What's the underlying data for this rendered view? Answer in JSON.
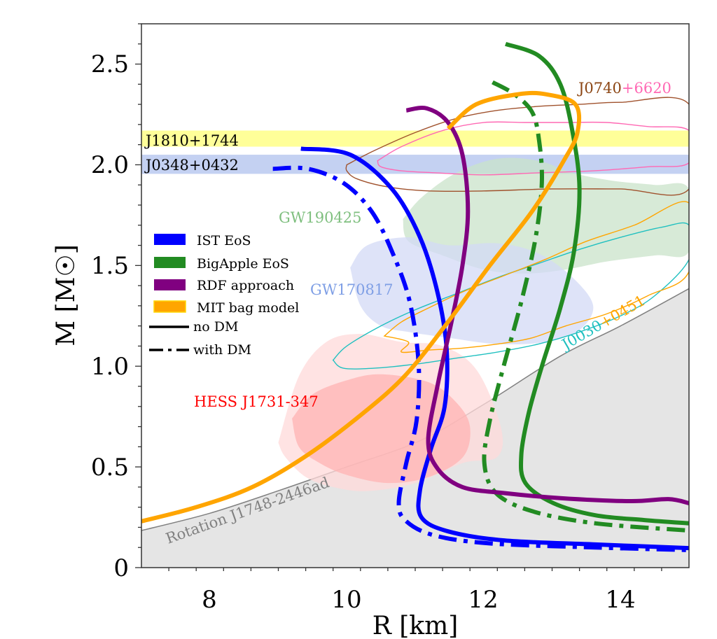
{
  "chart_data": {
    "type": "line",
    "title": "",
    "xlabel": "R [km]",
    "ylabel": "M [M☉]",
    "xlim": [
      7,
      15
    ],
    "ylim": [
      0,
      2.7
    ],
    "xticks": [
      8,
      10,
      12,
      14
    ],
    "yticks": [
      0,
      0.5,
      1.0,
      1.5,
      2.0,
      2.5
    ],
    "ytick_labels": [
      "0",
      "0.5",
      "1.0",
      "1.5",
      "2.0",
      "2.5"
    ],
    "xtick_labels": [
      "8",
      "10",
      "12",
      "14"
    ],
    "grid": false,
    "legend": {
      "placement": "center-left",
      "entries": [
        {
          "label": "IST EoS",
          "kind": "patch",
          "color": "#0000ff"
        },
        {
          "label": "BigApple EoS",
          "kind": "patch",
          "color": "#228b22"
        },
        {
          "label": "RDF approach",
          "kind": "patch",
          "color": "#800080"
        },
        {
          "label": "MIT bag model",
          "kind": "patch",
          "color": "#ffa500"
        },
        {
          "label": "no DM",
          "kind": "line",
          "style": "solid",
          "color": "#000000"
        },
        {
          "label": "with DM",
          "kind": "line",
          "style": "dashdot",
          "color": "#000000"
        }
      ]
    },
    "series": [
      {
        "name": "IST EoS no DM",
        "color": "#0000ff",
        "style": "solid",
        "x": [
          9.33,
          10.05,
          10.66,
          11.07,
          11.33,
          11.46,
          11.43,
          11.23,
          11.07,
          11.09,
          11.48,
          12.3,
          13.63,
          15.0
        ],
        "y": [
          2.08,
          2.05,
          1.88,
          1.64,
          1.36,
          1.08,
          0.8,
          0.59,
          0.385,
          0.25,
          0.18,
          0.135,
          0.115,
          0.097
        ]
      },
      {
        "name": "IST EoS with DM",
        "color": "#0000ff",
        "style": "dashdot",
        "x": [
          8.92,
          9.43,
          9.95,
          10.36,
          10.66,
          10.92,
          11.05,
          11.02,
          10.87,
          10.76,
          10.87,
          11.28,
          12.1,
          13.63,
          15.0
        ],
        "y": [
          1.98,
          1.98,
          1.91,
          1.77,
          1.57,
          1.32,
          1.01,
          0.73,
          0.52,
          0.32,
          0.23,
          0.16,
          0.12,
          0.1,
          0.087
        ]
      },
      {
        "name": "BigApple EoS no DM",
        "color": "#228b22",
        "style": "solid",
        "x": [
          12.32,
          12.81,
          13.12,
          13.3,
          13.4,
          13.32,
          13.12,
          12.86,
          12.66,
          12.55,
          12.61,
          13.02,
          13.63,
          14.35,
          15.0
        ],
        "y": [
          2.6,
          2.54,
          2.4,
          2.16,
          1.88,
          1.57,
          1.29,
          1.01,
          0.77,
          0.56,
          0.42,
          0.32,
          0.26,
          0.236,
          0.22
        ]
      },
      {
        "name": "BigApple EoS with DM",
        "color": "#228b22",
        "style": "dashdot",
        "x": [
          12.13,
          12.45,
          12.71,
          12.81,
          12.85,
          12.76,
          12.55,
          12.3,
          12.09,
          12.01,
          12.18,
          12.71,
          13.63,
          15.0
        ],
        "y": [
          2.41,
          2.35,
          2.26,
          2.12,
          1.91,
          1.64,
          1.32,
          1.01,
          0.73,
          0.52,
          0.37,
          0.28,
          0.22,
          0.184
        ]
      },
      {
        "name": "RDF approach no DM",
        "color": "#800080",
        "style": "solid",
        "x": [
          10.87,
          11.17,
          11.48,
          11.69,
          11.77,
          11.69,
          11.53,
          11.33,
          11.19,
          11.33,
          11.69,
          12.3,
          13.12,
          14.14,
          14.7,
          15.0
        ],
        "y": [
          2.27,
          2.28,
          2.21,
          2.05,
          1.77,
          1.5,
          1.22,
          0.91,
          0.63,
          0.49,
          0.4,
          0.37,
          0.345,
          0.33,
          0.34,
          0.32
        ]
      },
      {
        "name": "MIT bag model no DM",
        "color": "#ffa500",
        "style": "solid",
        "x": [
          7.0,
          7.8,
          8.62,
          9.43,
          10.25,
          10.87,
          11.48,
          12.09,
          12.71,
          13.17,
          13.37,
          13.34,
          12.91,
          12.5,
          11.89,
          11.48
        ],
        "y": [
          0.23,
          0.3,
          0.4,
          0.56,
          0.77,
          0.96,
          1.22,
          1.5,
          1.77,
          2.02,
          2.16,
          2.3,
          2.35,
          2.35,
          2.3,
          2.18
        ]
      }
    ],
    "bands": [
      {
        "name": "J1810+1744",
        "color": "#ffff99",
        "ymin": 2.09,
        "ymax": 2.17
      },
      {
        "name": "J0348+0432",
        "color": "#c4d1f2",
        "ymin": 1.955,
        "ymax": 2.05
      }
    ],
    "regions": [
      {
        "name": "Rotation J1748-2446ad",
        "color": "#e5e5e5",
        "edge": "#808080",
        "x": [
          7.0,
          8.0,
          9.03,
          10.0,
          11.07,
          12.0,
          13.12,
          14.0,
          15.0
        ],
        "y": [
          0.184,
          0.27,
          0.385,
          0.5,
          0.63,
          0.81,
          1.05,
          1.2,
          1.385
        ]
      },
      {
        "name": "GW190425",
        "color": "#c9e3c9",
        "x": [
          10.82,
          11.1,
          11.6,
          12.2,
          12.8,
          13.3,
          13.9,
          14.5,
          15.0,
          15.0,
          14.5,
          13.8,
          13.2,
          12.6,
          12.0,
          11.4,
          10.9,
          10.82
        ],
        "y": [
          1.73,
          1.84,
          1.96,
          2.03,
          2.02,
          1.96,
          1.92,
          1.9,
          1.88,
          1.57,
          1.55,
          1.52,
          1.48,
          1.46,
          1.48,
          1.55,
          1.62,
          1.73
        ]
      },
      {
        "name": "GW170817",
        "color": "#d3daf5",
        "x": [
          10.05,
          10.3,
          10.9,
          11.5,
          12.2,
          12.8,
          13.3,
          13.6,
          13.4,
          12.9,
          12.2,
          11.5,
          10.9,
          10.5,
          10.2,
          10.05
        ],
        "y": [
          1.49,
          1.6,
          1.64,
          1.6,
          1.61,
          1.56,
          1.44,
          1.3,
          1.18,
          1.12,
          1.11,
          1.14,
          1.17,
          1.2,
          1.3,
          1.49
        ]
      },
      {
        "name": "HESS J1731-347 outer",
        "color": "#ffdada",
        "x": [
          9.0,
          9.3,
          9.7,
          10.2,
          10.8,
          11.4,
          11.9,
          12.25,
          12.2,
          11.7,
          11.0,
          10.3,
          9.8,
          9.4,
          9.1,
          9.0
        ],
        "y": [
          0.62,
          0.95,
          1.12,
          1.16,
          1.12,
          1.1,
          0.98,
          0.7,
          0.55,
          0.52,
          0.42,
          0.38,
          0.4,
          0.45,
          0.55,
          0.62
        ]
      },
      {
        "name": "HESS J1731-347 inner",
        "color": "#ffb3b3",
        "x": [
          9.2,
          9.5,
          10.0,
          10.5,
          11.2,
          11.6,
          11.8,
          11.7,
          11.2,
          10.6,
          10.0,
          9.6,
          9.3,
          9.2
        ],
        "y": [
          0.74,
          0.86,
          0.93,
          0.96,
          0.92,
          0.82,
          0.7,
          0.55,
          0.45,
          0.42,
          0.46,
          0.52,
          0.6,
          0.74
        ]
      }
    ],
    "contours": [
      {
        "name": "J0740+6620 outer",
        "color": "#a0522d",
        "x": [
          10.0,
          10.4,
          11.0,
          11.6,
          12.2,
          12.8,
          13.4,
          14.0,
          15.0,
          15.0,
          14.0,
          13.0,
          12.0,
          11.2,
          10.6,
          10.15,
          10.0,
          10.0
        ],
        "y": [
          2.0,
          2.07,
          2.16,
          2.23,
          2.27,
          2.29,
          2.3,
          2.31,
          2.3,
          1.88,
          1.88,
          1.88,
          1.87,
          1.87,
          1.89,
          1.93,
          1.97,
          2.0
        ]
      },
      {
        "name": "J0740+6620 inner",
        "color": "#ff69b4",
        "x": [
          10.45,
          10.8,
          11.4,
          12.0,
          12.6,
          13.2,
          13.8,
          14.4,
          15.0,
          15.0,
          14.4,
          13.6,
          12.8,
          12.0,
          11.3,
          10.8,
          10.5,
          10.45
        ],
        "y": [
          2.02,
          2.09,
          2.17,
          2.21,
          2.21,
          2.21,
          2.21,
          2.19,
          2.17,
          2.01,
          1.99,
          1.97,
          1.96,
          1.95,
          1.96,
          1.97,
          1.99,
          2.02
        ]
      },
      {
        "name": "J0030+0451 cyan",
        "color": "#20c0c0",
        "x": [
          9.8,
          10.0,
          10.5,
          11.0,
          11.6,
          12.2,
          12.8,
          13.4,
          14.0,
          14.6,
          15.0,
          15.0,
          14.5,
          14.0,
          13.4,
          12.8,
          12.2,
          11.6,
          11.0,
          10.4,
          9.95,
          9.8
        ],
        "y": [
          1.03,
          1.1,
          1.2,
          1.28,
          1.36,
          1.44,
          1.51,
          1.58,
          1.64,
          1.69,
          1.7,
          1.53,
          1.35,
          1.25,
          1.17,
          1.11,
          1.07,
          1.04,
          1.01,
          0.99,
          0.99,
          1.03
        ]
      },
      {
        "name": "J0030+0451 orange",
        "color": "#ffa500",
        "x": [
          10.55,
          10.8,
          11.2,
          11.7,
          12.3,
          12.9,
          13.5,
          14.2,
          15.0,
          15.0,
          14.4,
          13.8,
          13.2,
          12.7,
          12.2,
          11.7,
          11.2,
          10.8,
          10.9,
          10.55
        ],
        "y": [
          1.15,
          1.22,
          1.29,
          1.37,
          1.45,
          1.53,
          1.62,
          1.7,
          1.81,
          1.47,
          1.35,
          1.26,
          1.2,
          1.14,
          1.11,
          1.09,
          1.08,
          1.07,
          1.12,
          1.15
        ]
      }
    ],
    "annotations": [
      {
        "text": "J1810+1744",
        "color": "#000000"
      },
      {
        "text": "J0348+0432",
        "color": "#000000"
      },
      {
        "text_a": "J0740",
        "text_b": "+6620",
        "color_a": "#8b4513",
        "color_b": "#ff69b4"
      },
      {
        "text": "GW190425",
        "color": "#7fbf7f"
      },
      {
        "text": "GW170817",
        "color": "#7f9fe5"
      },
      {
        "text": "HESS J1731-347",
        "color": "#ff0000"
      },
      {
        "text_a": "J0030",
        "text_b": "+0451",
        "color_a": "#20c0c0",
        "color_b": "#ffa500"
      },
      {
        "text": "Rotation J1748-2446ad",
        "color": "#808080"
      }
    ]
  }
}
